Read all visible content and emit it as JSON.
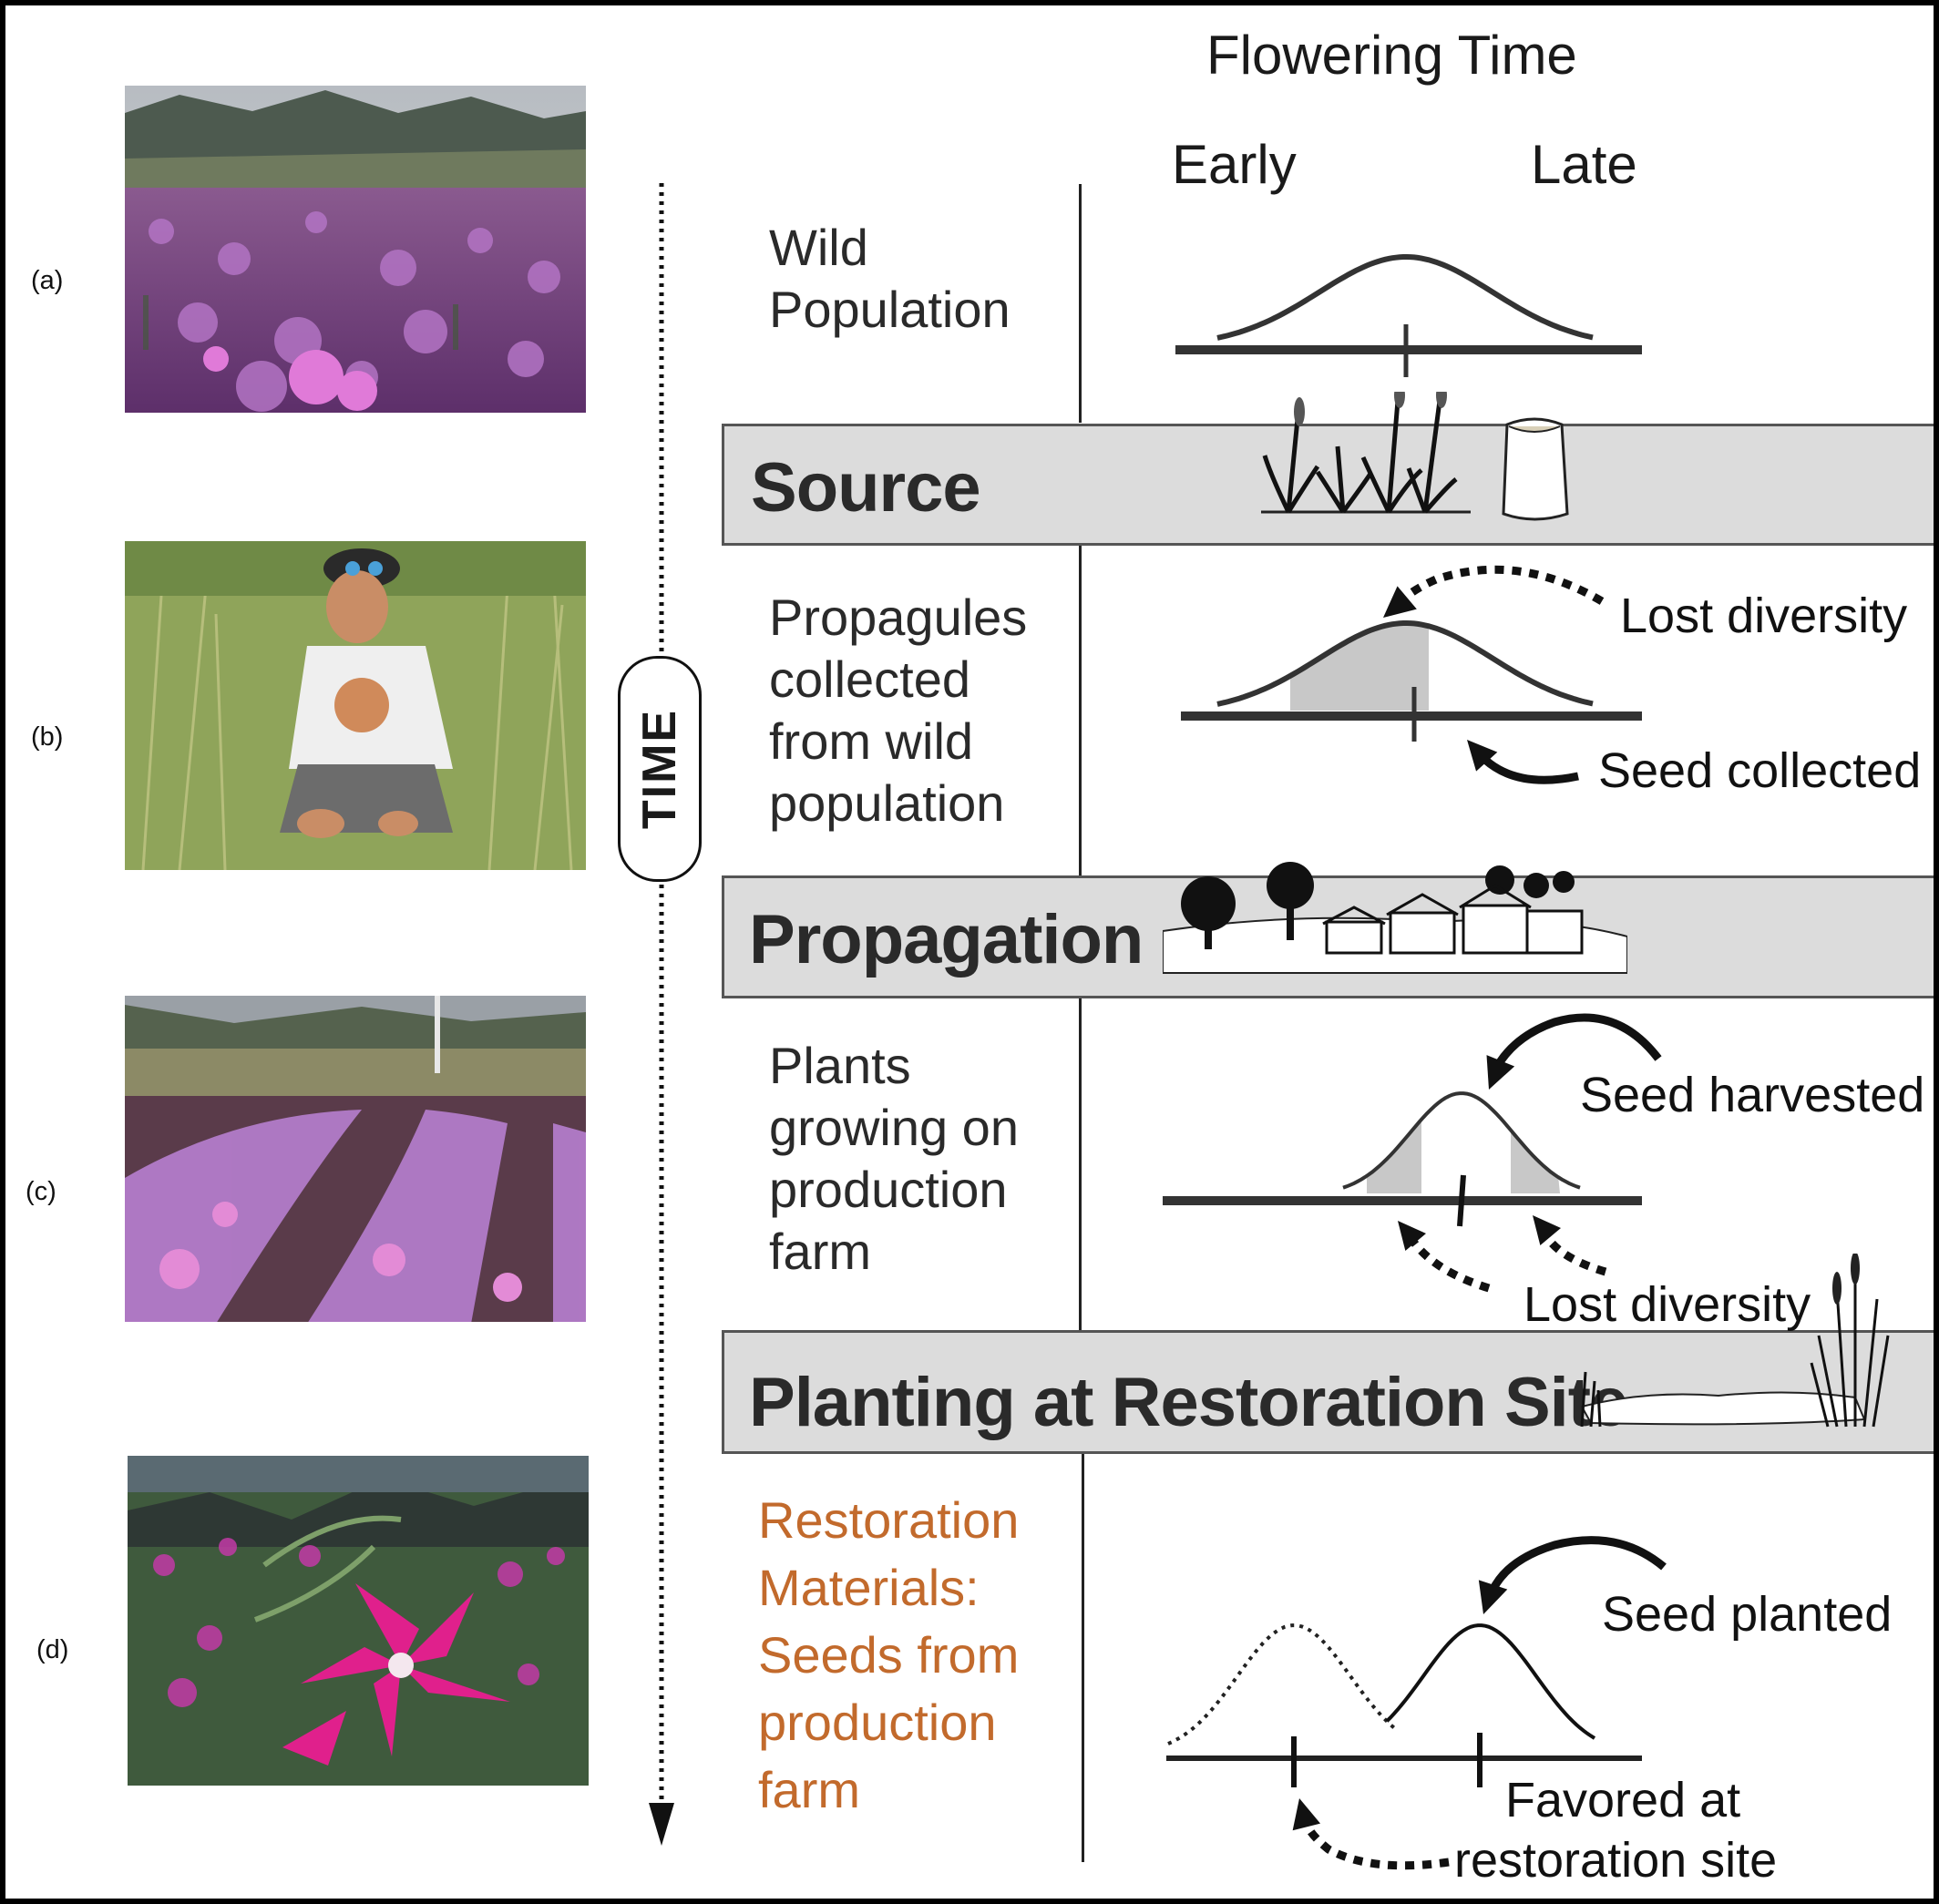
{
  "header": {
    "title": "Flowering Time",
    "early": "Early",
    "late": "Late"
  },
  "panels": [
    {
      "label": "(a)",
      "photo": "photo-wildflower-field"
    },
    {
      "label": "(b)",
      "photo": "photo-seed-collector"
    },
    {
      "label": "(c)",
      "photo": "photo-production-farm-rows"
    },
    {
      "label": "(d)",
      "photo": "photo-pink-flower-closeup"
    }
  ],
  "timeline": {
    "label": "TIME"
  },
  "stages": {
    "wild": [
      "Wild",
      "Population"
    ],
    "collected": [
      "Propagules",
      "collected",
      "from wild",
      "population"
    ],
    "growing": [
      "Plants",
      "growing on",
      "production",
      "farm"
    ],
    "restoration": [
      "Restoration",
      "Materials:",
      "Seeds from",
      "production",
      "farm"
    ]
  },
  "bands": {
    "source": "Source",
    "propagation": "Propagation",
    "planting": "Planting at Restoration Site"
  },
  "annotations": {
    "lost_diversity_1": "Lost diversity",
    "seed_collected": "Seed collected",
    "seed_harvested": "Seed harvested",
    "lost_diversity_2": "Lost diversity",
    "seed_planted": "Seed planted",
    "favored_1": "Favored at",
    "favored_2": "restoration site"
  },
  "colors": {
    "band": "#dcdcdc",
    "restoration_text": "#c26a2c",
    "shade": "#c8c8c8"
  }
}
